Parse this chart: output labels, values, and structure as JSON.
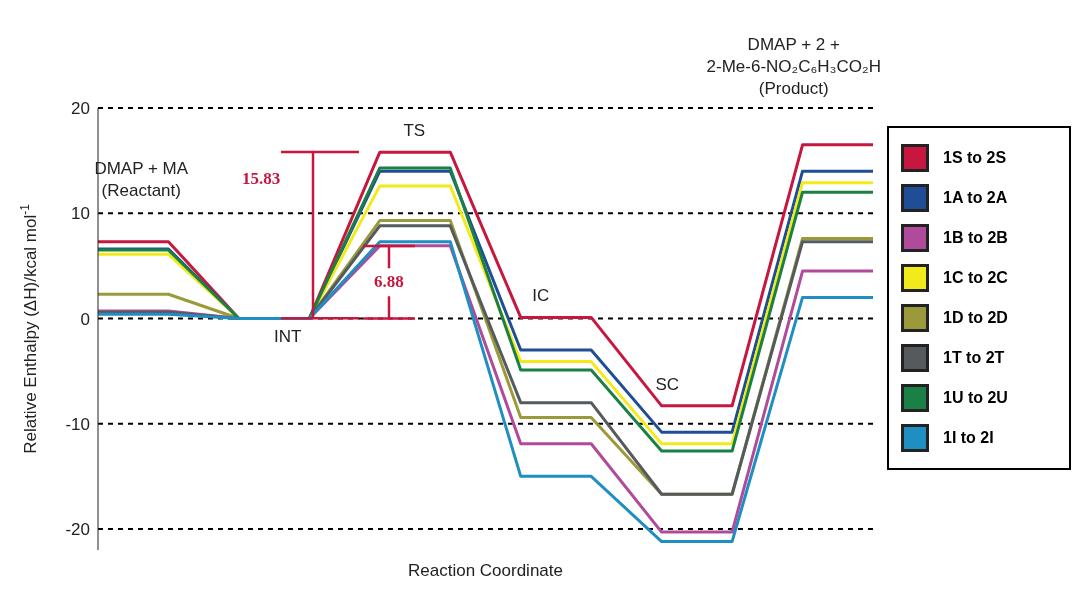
{
  "chart_data": {
    "type": "line",
    "xlabel": "Reaction Coordinate",
    "ylabel": "Relative Enthalpy (ΔH)/kcal mol$^{-1}$",
    "categories": [
      null,
      null,
      null,
      null,
      null,
      null,
      null,
      null,
      null,
      null,
      null,
      null
    ],
    "ylim": [
      -22,
      20
    ],
    "yticks": [
      -20,
      -10,
      0,
      10,
      20
    ],
    "grid": "y",
    "legend": "right",
    "marker": "none",
    "line_style": "solid",
    "series": [
      {
        "name": "1S to 2S",
        "color": "#c8173f",
        "values": [
          7.3,
          7.3,
          0,
          0,
          15.8,
          15.8,
          0.1,
          0.1,
          -8.3,
          -8.3,
          16.5,
          16.5
        ]
      },
      {
        "name": "1A to 2A",
        "color": "#1f4e96",
        "values": [
          6.6,
          6.6,
          0,
          0,
          14.0,
          14.0,
          -3.0,
          -3.0,
          -10.8,
          -10.8,
          14.0,
          14.0
        ]
      },
      {
        "name": "1B to 2B",
        "color": "#b04a9a",
        "values": [
          0.7,
          0.7,
          0,
          0,
          6.9,
          6.9,
          -11.9,
          -11.9,
          -20.3,
          -20.3,
          4.5,
          4.5
        ]
      },
      {
        "name": "1C to 2C",
        "color": "#f2ea1a",
        "values": [
          6.1,
          6.1,
          0,
          0,
          12.6,
          12.6,
          -4.1,
          -4.1,
          -11.9,
          -11.9,
          12.9,
          12.9
        ]
      },
      {
        "name": "1D to 2D",
        "color": "#9a9a3a",
        "values": [
          2.3,
          2.3,
          0,
          0,
          9.3,
          9.3,
          -9.4,
          -9.4,
          -16.7,
          -16.7,
          7.6,
          7.6
        ]
      },
      {
        "name": "1T to 2T",
        "color": "#555a5e",
        "values": [
          0.6,
          0.6,
          0,
          0,
          8.8,
          8.8,
          -8.0,
          -8.0,
          -16.7,
          -16.7,
          7.3,
          7.3
        ]
      },
      {
        "name": "1U to 2U",
        "color": "#1a8046",
        "values": [
          6.5,
          6.5,
          0,
          0,
          14.3,
          14.3,
          -4.9,
          -4.9,
          -12.6,
          -12.6,
          12.0,
          12.0
        ]
      },
      {
        "name": "1I to 2I",
        "color": "#1f8ec2",
        "values": [
          0.4,
          0.4,
          0,
          0,
          7.3,
          7.3,
          -15.0,
          -15.0,
          -21.2,
          -21.2,
          2.0,
          2.0
        ]
      }
    ],
    "annotations": [
      "DMAP + MA\n(Reactant)",
      "INT",
      "TS",
      "IC",
      "SC",
      "DMAP + 2 +\n2-Me-6-NO₂C₆H₃CO₂H\n(Product)",
      "15.83",
      "6.88"
    ]
  }
}
